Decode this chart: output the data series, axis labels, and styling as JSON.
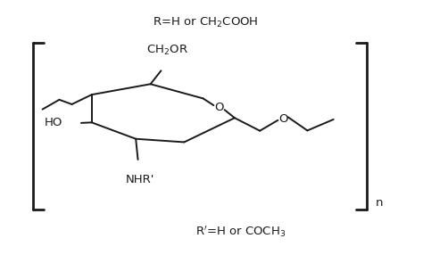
{
  "background_color": "#ffffff",
  "figsize": [
    4.74,
    2.86
  ],
  "dpi": 100,
  "bond_color": "#1a1a1a",
  "text_color": "#1a1a1a",
  "top_label": "R=H or CH$_2$COOH",
  "bottom_label": "R$'$=H or COCH$_3$",
  "n_label": "n",
  "lw": 1.4,
  "bracket_lw": 2.0,
  "fs": 9.5
}
